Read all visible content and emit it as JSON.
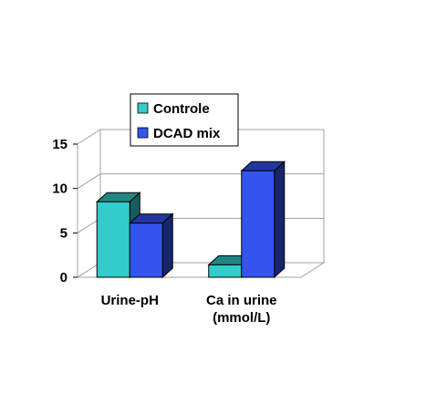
{
  "chart_data": {
    "type": "bar",
    "style": "3d-clustered",
    "categories": [
      "Urine-pH",
      "Ca in urine (mmol/L)"
    ],
    "category_lines": [
      [
        "Urine-pH"
      ],
      [
        "Ca in urine",
        "(mmol/L)"
      ]
    ],
    "series": [
      {
        "name": "Controle",
        "values": [
          8.5,
          1.4
        ],
        "color": "#33CCCC"
      },
      {
        "name": "DCAD mix",
        "values": [
          6.1,
          12.0
        ],
        "color": "#3355EE"
      }
    ],
    "ylim": [
      0,
      15
    ],
    "yticks": [
      0,
      5,
      10,
      15
    ],
    "grid": true,
    "legend_position": "top"
  },
  "legend": {
    "items": [
      {
        "label": "Controle",
        "color": "#33CCCC"
      },
      {
        "label": "DCAD mix",
        "color": "#3355EE"
      }
    ]
  }
}
